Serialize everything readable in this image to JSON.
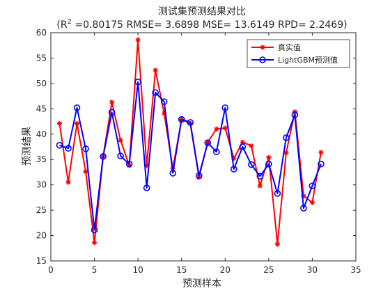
{
  "chart_data": {
    "type": "line",
    "title": "测试集预测结果对比",
    "subtitle_pre": "(R",
    "subtitle_sup": "2",
    "subtitle_post": " =0.80175 RMSE= 3.6898 MSE= 13.6149 RPD= 2.2469)",
    "xlabel": "预测样本",
    "ylabel": "预测结果",
    "xlim": [
      0,
      35
    ],
    "ylim": [
      15,
      60
    ],
    "xticks": [
      0,
      5,
      10,
      15,
      20,
      25,
      30,
      35
    ],
    "yticks": [
      15,
      20,
      25,
      30,
      35,
      40,
      45,
      50,
      55,
      60
    ],
    "grid": false,
    "legend_position": "top-right",
    "x": [
      1,
      2,
      3,
      4,
      5,
      6,
      7,
      8,
      9,
      10,
      11,
      12,
      13,
      14,
      15,
      16,
      17,
      18,
      19,
      20,
      21,
      22,
      23,
      24,
      25,
      26,
      27,
      28,
      29,
      30,
      31
    ],
    "series": [
      {
        "name": "真实值",
        "color": "#ff0000",
        "marker": "asterisk",
        "values": [
          42.1,
          30.5,
          42.1,
          32.6,
          18.6,
          35.6,
          46.3,
          38.8,
          33.8,
          58.6,
          33.8,
          52.6,
          44.1,
          33.2,
          42.9,
          42.1,
          31.5,
          38.4,
          41.0,
          41.2,
          35.2,
          38.4,
          37.7,
          29.8,
          35.4,
          18.3,
          36.3,
          44.4,
          27.8,
          26.5,
          36.4
        ]
      },
      {
        "name": "LightGBM预测值",
        "color": "#0000ff",
        "marker": "circle",
        "values": [
          37.8,
          37.2,
          45.2,
          37.1,
          21.1,
          35.6,
          44.3,
          35.7,
          34.1,
          50.3,
          29.4,
          48.2,
          46.4,
          32.3,
          42.9,
          42.3,
          31.8,
          38.3,
          36.5,
          45.2,
          33.1,
          37.5,
          34.0,
          31.7,
          34.1,
          28.3,
          39.3,
          43.8,
          25.4,
          29.8,
          34.1
        ]
      }
    ]
  }
}
